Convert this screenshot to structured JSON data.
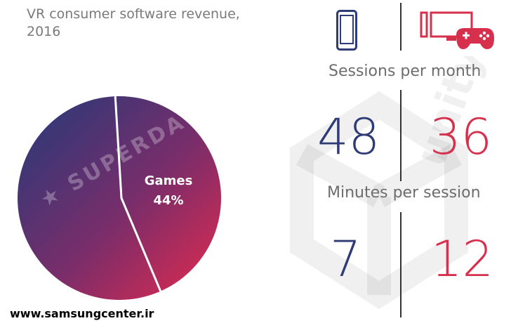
{
  "title": "VR consumer software revenue, 2016",
  "chart_data": {
    "type": "pie",
    "slices": [
      {
        "label": "Games",
        "value": 44,
        "color": "#c52a5a"
      },
      {
        "label": "",
        "value": 56,
        "color": "#3a3a78"
      }
    ],
    "data_labels": {
      "games_name": "Games",
      "games_value": "44%"
    }
  },
  "watermarks": {
    "superdata": "★ SUPERDATA"
  },
  "stats": {
    "sessions_label": "Sessions per month",
    "minutes_label": "Minutes per session",
    "mobile_sessions": "48",
    "console_sessions": "36",
    "mobile_minutes": "7",
    "console_minutes": "12"
  },
  "icons": {
    "left": "mobile-phone-icon",
    "right": "pc-gamepad-icon"
  },
  "colors": {
    "blue": "#2e3b74",
    "red": "#d6304c",
    "text_gray": "#6d6d6d"
  },
  "footer": "www.samsungcenter.ir"
}
